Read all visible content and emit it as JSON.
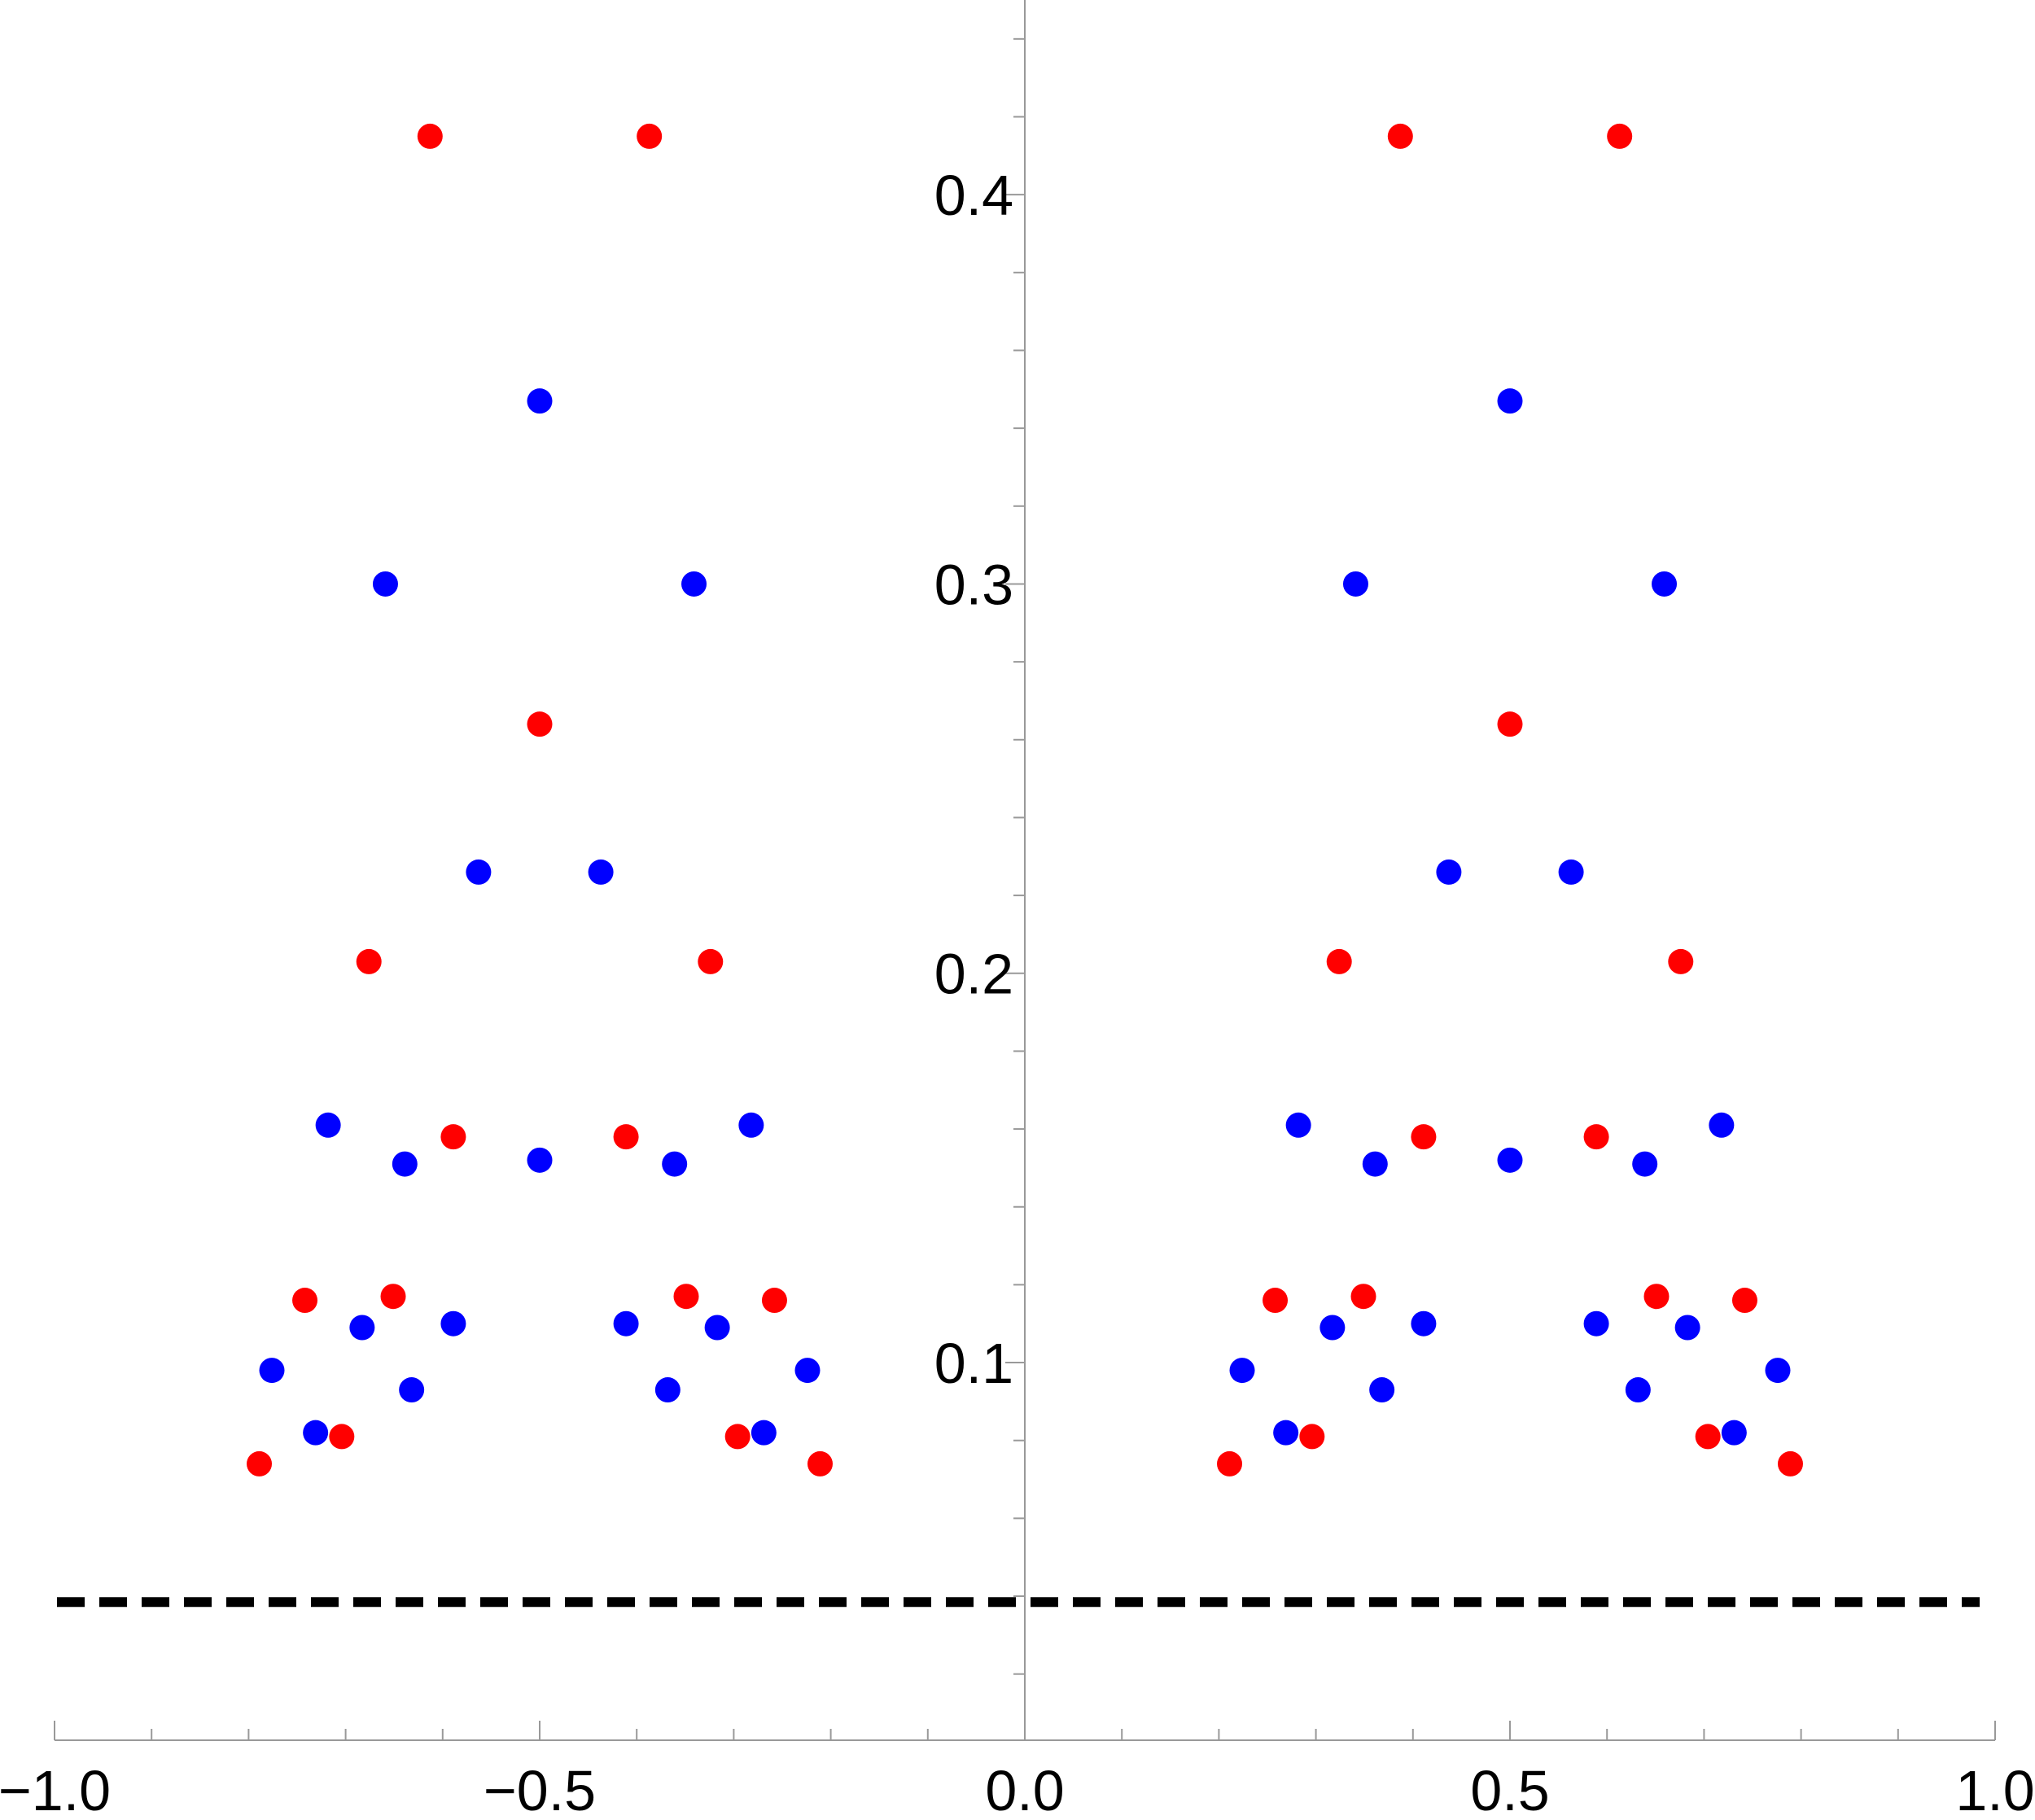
{
  "chart_data": {
    "type": "scatter",
    "title": "",
    "xlabel": "",
    "ylabel": "",
    "xlim": [
      -1.0,
      1.0
    ],
    "ylim": [
      0.003,
      0.45
    ],
    "x_ticks": [
      {
        "value": -1.0,
        "label": "−1.0"
      },
      {
        "value": -0.5,
        "label": "−0.5"
      },
      {
        "value": 0.0,
        "label": "0.0"
      },
      {
        "value": 0.5,
        "label": "0.5"
      },
      {
        "value": 1.0,
        "label": "1.0"
      }
    ],
    "y_ticks": [
      {
        "value": 0.1,
        "label": "0.1"
      },
      {
        "value": 0.2,
        "label": "0.2"
      },
      {
        "value": 0.3,
        "label": "0.3"
      },
      {
        "value": 0.4,
        "label": "0.4"
      }
    ],
    "x_minor_step": 0.1,
    "y_minor_step": 0.02,
    "grid": false,
    "reference_line": {
      "y": 0.0385,
      "style": "dashed",
      "color": "#000000"
    },
    "series": [
      {
        "color": "#ff0000",
        "points": [
          [
            -0.613,
            0.415
          ],
          [
            -0.387,
            0.415
          ],
          [
            0.387,
            0.415
          ],
          [
            0.613,
            0.415
          ],
          [
            -0.5,
            0.264
          ],
          [
            0.5,
            0.264
          ],
          [
            -0.676,
            0.203
          ],
          [
            -0.324,
            0.203
          ],
          [
            0.324,
            0.203
          ],
          [
            0.676,
            0.203
          ],
          [
            -0.589,
            0.158
          ],
          [
            -0.411,
            0.158
          ],
          [
            0.411,
            0.158
          ],
          [
            0.589,
            0.158
          ],
          [
            -0.742,
            0.116
          ],
          [
            -0.651,
            0.117
          ],
          [
            -0.349,
            0.117
          ],
          [
            -0.258,
            0.116
          ],
          [
            0.258,
            0.116
          ],
          [
            0.349,
            0.117
          ],
          [
            0.651,
            0.117
          ],
          [
            0.742,
            0.116
          ],
          [
            -0.704,
            0.081
          ],
          [
            -0.296,
            0.081
          ],
          [
            0.296,
            0.081
          ],
          [
            0.704,
            0.081
          ],
          [
            -0.789,
            0.074
          ],
          [
            -0.211,
            0.074
          ],
          [
            0.211,
            0.074
          ],
          [
            0.789,
            0.074
          ]
        ]
      },
      {
        "color": "#0000ff",
        "points": [
          [
            -0.5,
            0.347
          ],
          [
            0.5,
            0.347
          ],
          [
            -0.659,
            0.3
          ],
          [
            -0.341,
            0.3
          ],
          [
            0.341,
            0.3
          ],
          [
            0.659,
            0.3
          ],
          [
            -0.563,
            0.226
          ],
          [
            -0.437,
            0.226
          ],
          [
            0.437,
            0.226
          ],
          [
            0.563,
            0.226
          ],
          [
            -0.718,
            0.161
          ],
          [
            -0.282,
            0.161
          ],
          [
            0.282,
            0.161
          ],
          [
            0.718,
            0.161
          ],
          [
            -0.5,
            0.152
          ],
          [
            0.5,
            0.152
          ],
          [
            -0.639,
            0.151
          ],
          [
            -0.361,
            0.151
          ],
          [
            0.361,
            0.151
          ],
          [
            0.639,
            0.151
          ],
          [
            -0.589,
            0.11
          ],
          [
            -0.411,
            0.11
          ],
          [
            0.411,
            0.11
          ],
          [
            0.589,
            0.11
          ],
          [
            -0.683,
            0.109
          ],
          [
            -0.317,
            0.109
          ],
          [
            0.317,
            0.109
          ],
          [
            0.683,
            0.109
          ],
          [
            -0.776,
            0.098
          ],
          [
            -0.224,
            0.098
          ],
          [
            0.224,
            0.098
          ],
          [
            0.776,
            0.098
          ],
          [
            -0.632,
            0.093
          ],
          [
            -0.368,
            0.093
          ],
          [
            0.368,
            0.093
          ],
          [
            0.632,
            0.093
          ],
          [
            -0.731,
            0.082
          ],
          [
            -0.269,
            0.082
          ],
          [
            0.269,
            0.082
          ],
          [
            0.731,
            0.082
          ]
        ]
      }
    ]
  }
}
